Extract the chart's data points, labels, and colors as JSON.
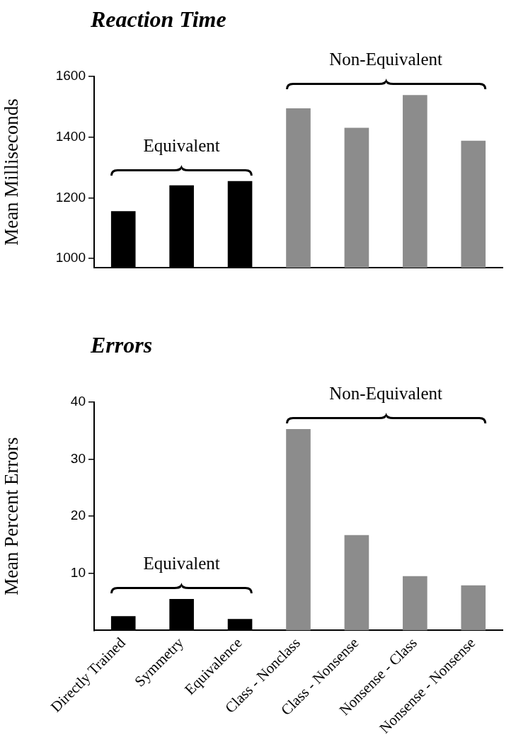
{
  "chart_data": [
    {
      "type": "bar",
      "title": "Reaction Time",
      "ylabel": "Mean Milliseconds",
      "categories": [
        null,
        null,
        null,
        null,
        null,
        null,
        null
      ],
      "values": [
        1156,
        1241,
        1255,
        1495,
        1431,
        1539,
        1388
      ],
      "colors": [
        "#000000",
        "#000000",
        "#000000",
        "#8c8c8c",
        "#8c8c8c",
        "#8c8c8c",
        "#8c8c8c"
      ],
      "ylim": [
        970,
        1600
      ],
      "yticks": [
        1000,
        1200,
        1400,
        1600
      ],
      "tick_labels": "y",
      "annotations": [
        "Equivalent",
        "Non-Equivalent"
      ]
    },
    {
      "type": "bar",
      "title": "Errors",
      "ylabel": "Mean Percent Errors",
      "categories": [
        "Directly Trained",
        "Symmetry",
        "Equivalence",
        "Class - Nonclass",
        "Class - Nonsense",
        "Nonsense - Class",
        "Nonsense - Nonsense"
      ],
      "values": [
        2.5,
        5.5,
        2.0,
        35.3,
        16.7,
        9.5,
        7.9
      ],
      "colors": [
        "#000000",
        "#000000",
        "#000000",
        "#8c8c8c",
        "#8c8c8c",
        "#8c8c8c",
        "#8c8c8c"
      ],
      "ylim": [
        0,
        40
      ],
      "yticks": [
        10,
        20,
        30,
        40
      ],
      "annotations": [
        "Equivalent",
        "Non-Equivalent"
      ]
    }
  ]
}
